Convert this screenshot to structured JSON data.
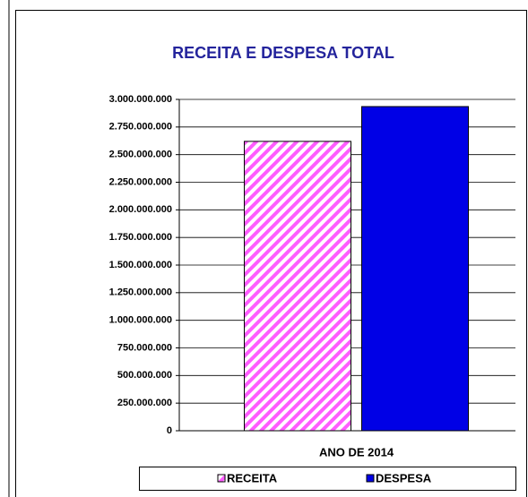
{
  "chart_data": {
    "type": "bar",
    "title": "RECEITA E DESPESA TOTAL",
    "categories": [
      "ANO DE 2014"
    ],
    "series": [
      {
        "name": "RECEITA",
        "color": "#ff5cff",
        "pattern": "diagonal-hatch",
        "values": [
          2620000000
        ]
      },
      {
        "name": "DESPESA",
        "color": "#0000e6",
        "values": [
          2935000000
        ]
      }
    ],
    "ylim": [
      0,
      3000000000
    ],
    "yticks": [
      0,
      {
        "value": 250000000,
        "label": "250.000.000"
      },
      {
        "value": 500000000,
        "label": "500.000.000"
      },
      {
        "value": 750000000,
        "label": "750.000.000"
      },
      {
        "value": 1000000000,
        "label": "1.000.000.000"
      },
      {
        "value": 1250000000,
        "label": "1.250.000.000"
      },
      {
        "value": 1500000000,
        "label": "1.500.000.000"
      },
      {
        "value": 1750000000,
        "label": "1.750.000.000"
      },
      {
        "value": 2000000000,
        "label": "2.000.000.000"
      },
      {
        "value": 2250000000,
        "label": "2.250.000.000"
      },
      {
        "value": 2500000000,
        "label": "2.500.000.000"
      },
      {
        "value": 2750000000,
        "label": "2.750.000.000"
      },
      {
        "value": 3000000000,
        "label": "3.000.000.000"
      }
    ],
    "grid": true,
    "legend": "bottom"
  }
}
